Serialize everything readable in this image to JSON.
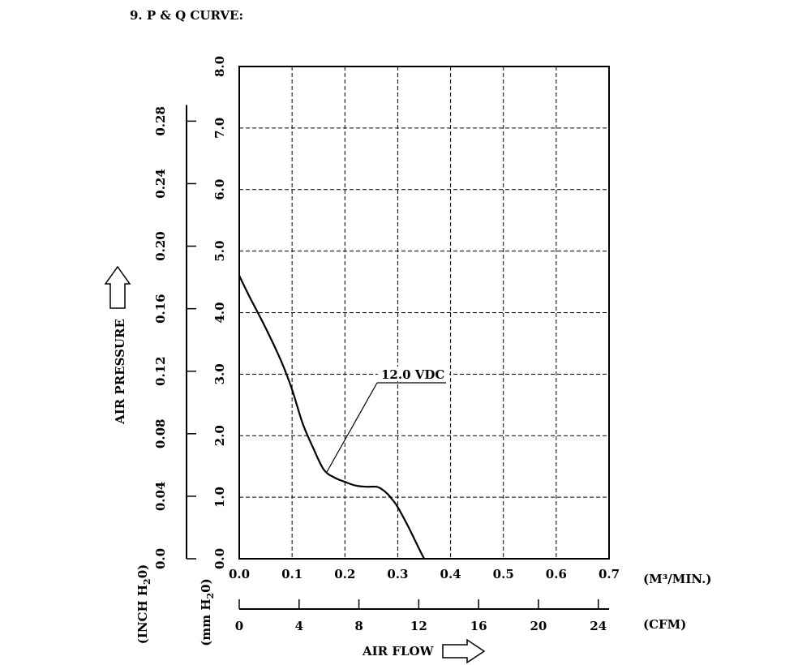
{
  "heading": "9. P & Q CURVE:",
  "chart_data": {
    "type": "line",
    "title": "",
    "series": [
      {
        "name": "12.0 VDC",
        "x": [
          0.0,
          0.02,
          0.05,
          0.08,
          0.1,
          0.12,
          0.14,
          0.16,
          0.18,
          0.2,
          0.22,
          0.24,
          0.26,
          0.27,
          0.28,
          0.29,
          0.3,
          0.32,
          0.34,
          0.35
        ],
        "y": [
          4.6,
          4.25,
          3.75,
          3.2,
          2.75,
          2.2,
          1.8,
          1.45,
          1.32,
          1.25,
          1.19,
          1.17,
          1.17,
          1.13,
          1.06,
          0.96,
          0.84,
          0.52,
          0.17,
          0.0
        ]
      }
    ],
    "x_axis": {
      "label": "AIR FLOW",
      "primary_unit": "(M³/MIN.)",
      "primary_ticks": [
        "0.0",
        "0.1",
        "0.2",
        "0.3",
        "0.4",
        "0.5",
        "0.6",
        "0.7"
      ],
      "xlim": [
        0.0,
        0.7
      ],
      "secondary_unit": "(CFM)",
      "secondary_ticks": [
        "0",
        "4",
        "8",
        "12",
        "16",
        "20",
        "24"
      ]
    },
    "y_axis": {
      "label": "AIR PRESSURE",
      "mm_unit_pre": "(mm H",
      "mm_unit_sub": "2",
      "mm_unit_post": "0)",
      "mm_ticks": [
        "0.0",
        "1.0",
        "2.0",
        "3.0",
        "4.0",
        "5.0",
        "6.0",
        "7.0",
        "8.0"
      ],
      "ylim": [
        0.0,
        8.0
      ],
      "inch_unit_pre": "(INCH H",
      "inch_unit_sub": "2",
      "inch_unit_post": "0)",
      "inch_ticks": [
        "0.0",
        "0.04",
        "0.08",
        "0.12",
        "0.16",
        "0.20",
        "0.24",
        "0.28"
      ]
    },
    "grid": true,
    "annotation": "12.0 VDC"
  }
}
